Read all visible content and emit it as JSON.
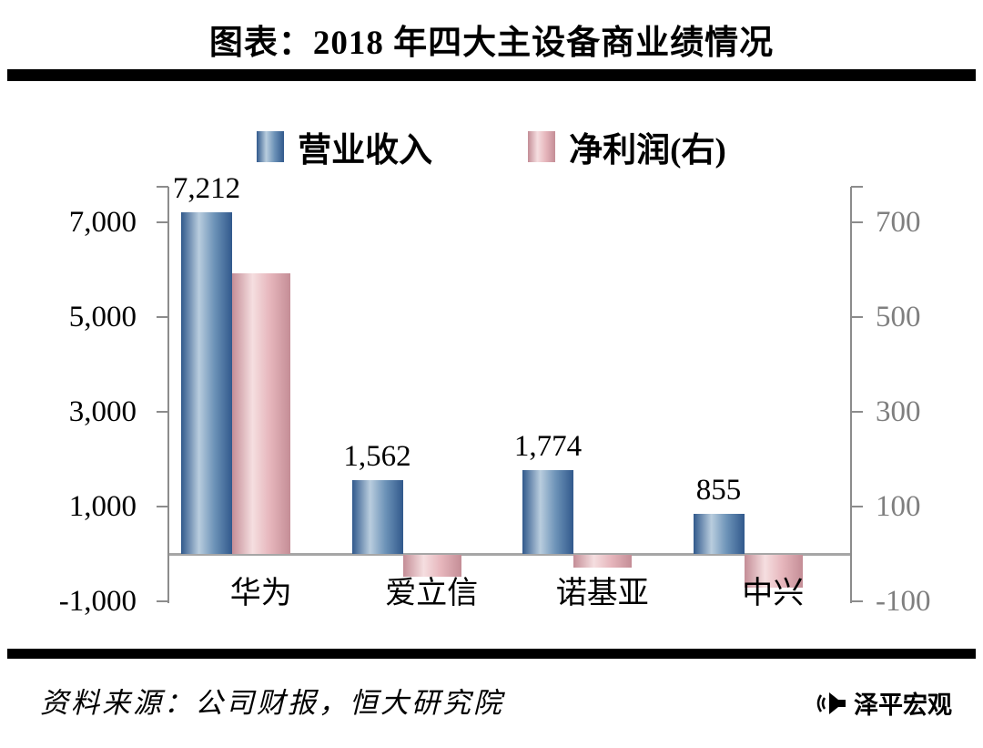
{
  "title": "图表：2018 年四大主设备商业绩情况",
  "legend": [
    {
      "label": "营业收入",
      "series": "revenue"
    },
    {
      "label": "净利润(右)",
      "series": "profit"
    }
  ],
  "chart_data": {
    "type": "bar",
    "title": "图表：2018 年四大主设备商业绩情况",
    "categories": [
      "华为",
      "爱立信",
      "诺基亚",
      "中兴"
    ],
    "series": [
      {
        "name": "营业收入",
        "axis": "left",
        "values": [
          7212,
          1562,
          1774,
          855
        ],
        "value_labels": [
          "7,212",
          "1,562",
          "1,774",
          "855"
        ]
      },
      {
        "name": "净利润(右)",
        "axis": "right",
        "values": [
          593,
          -46,
          -26,
          -70
        ],
        "value_labels": []
      }
    ],
    "left_axis": {
      "tick_labels": [
        "7,000",
        "5,000",
        "3,000",
        "1,000",
        "-1,000"
      ],
      "tick_values": [
        7000,
        5000,
        3000,
        1000,
        -1000
      ],
      "range": [
        -1000,
        7750
      ]
    },
    "right_axis": {
      "tick_labels": [
        "700",
        "500",
        "300",
        "100",
        "-100"
      ],
      "tick_values": [
        700,
        500,
        300,
        100,
        -100
      ],
      "range": [
        -100,
        775
      ]
    },
    "legend_position": "top",
    "grid": false
  },
  "colors": {
    "revenue_bar_main": "#6d93b8",
    "revenue_bar_light": "#b9cdde",
    "revenue_bar_edge": "#31598c",
    "profit_bar_main": "#e6b6bc",
    "profit_bar_light": "#f5dee0",
    "profit_bar_edge": "#c48d96",
    "axis": "#8c8c8c",
    "right_axis_text": "#7f7f7f",
    "divider": "#000000"
  },
  "source": "资料来源：公司财报，恒大研究院",
  "logo_text": "泽平宏观"
}
